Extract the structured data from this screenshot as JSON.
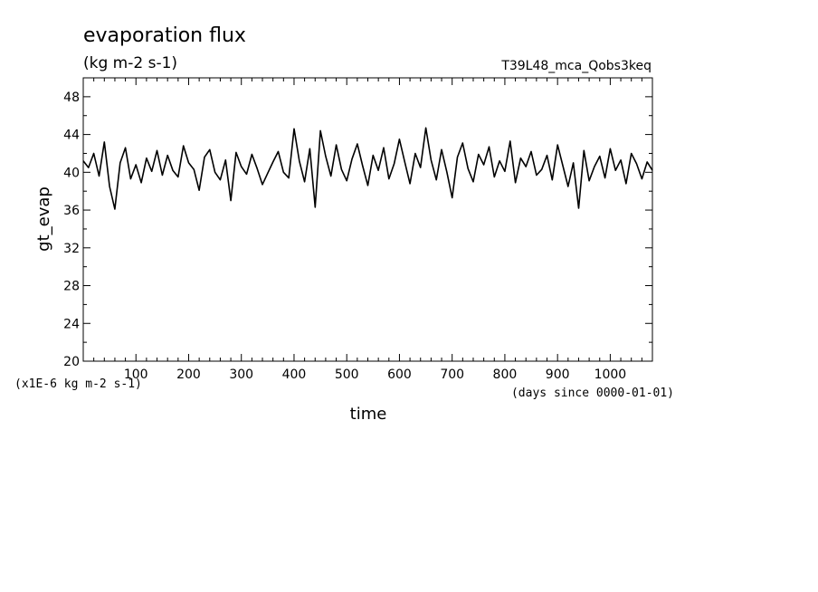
{
  "chart_data": {
    "type": "line",
    "title": "evaporation flux",
    "subtitle": "(kg m-2 s-1)",
    "experiment": "T39L48_mca_Qobs3keq",
    "xlabel": "time",
    "x_units": "(days since 0000-01-01)",
    "ylabel": "gt_evap",
    "y_units": "(x1E-6 kg m-2 s-1)",
    "xlim": [
      0,
      1080
    ],
    "ylim": [
      20,
      50
    ],
    "xticks": [
      100,
      200,
      300,
      400,
      500,
      600,
      700,
      800,
      900,
      1000
    ],
    "yticks": [
      20,
      24,
      28,
      32,
      36,
      40,
      44,
      48
    ],
    "series": [
      {
        "color": "#000000",
        "x": [
          0,
          10,
          20,
          30,
          40,
          50,
          60,
          70,
          80,
          90,
          100,
          110,
          120,
          130,
          140,
          150,
          160,
          170,
          180,
          190,
          200,
          210,
          220,
          230,
          240,
          250,
          260,
          270,
          280,
          290,
          300,
          310,
          320,
          330,
          340,
          350,
          360,
          370,
          380,
          390,
          400,
          410,
          420,
          430,
          440,
          450,
          460,
          470,
          480,
          490,
          500,
          510,
          520,
          530,
          540,
          550,
          560,
          570,
          580,
          590,
          600,
          610,
          620,
          630,
          640,
          650,
          660,
          670,
          680,
          690,
          700,
          710,
          720,
          730,
          740,
          750,
          760,
          770,
          780,
          790,
          800,
          810,
          820,
          830,
          840,
          850,
          860,
          870,
          880,
          890,
          900,
          910,
          920,
          930,
          940,
          950,
          960,
          970,
          980,
          990,
          1000,
          1010,
          1020,
          1030,
          1040,
          1050,
          1060,
          1070,
          1080
        ],
        "values": [
          41.2,
          40.5,
          42.0,
          39.6,
          43.2,
          38.5,
          36.1,
          41.0,
          42.6,
          39.3,
          40.8,
          38.9,
          41.5,
          40.1,
          42.3,
          39.7,
          41.8,
          40.2,
          39.5,
          42.8,
          41.0,
          40.3,
          38.1,
          41.6,
          42.4,
          40.0,
          39.2,
          41.3,
          37.0,
          42.1,
          40.6,
          39.8,
          41.9,
          40.4,
          38.7,
          39.9,
          41.1,
          42.2,
          40.0,
          39.4,
          44.6,
          41.2,
          39.0,
          42.5,
          36.3,
          44.4,
          41.7,
          39.6,
          42.9,
          40.3,
          39.1,
          41.4,
          43.0,
          40.7,
          38.6,
          41.8,
          40.2,
          42.6,
          39.3,
          40.9,
          43.5,
          41.1,
          38.8,
          42.0,
          40.5,
          44.7,
          41.3,
          39.2,
          42.4,
          40.0,
          37.3,
          41.6,
          43.1,
          40.4,
          39.0,
          41.9,
          40.8,
          42.7,
          39.5,
          41.2,
          40.1,
          43.3,
          38.9,
          41.5,
          40.6,
          42.2,
          39.7,
          40.3,
          41.8,
          39.2,
          42.9,
          40.7,
          38.5,
          41.0,
          36.2,
          42.3,
          39.1,
          40.6,
          41.7,
          39.4,
          42.5,
          40.2,
          41.3,
          38.8,
          42.0,
          40.9,
          39.3,
          41.1,
          40.2
        ]
      }
    ]
  }
}
